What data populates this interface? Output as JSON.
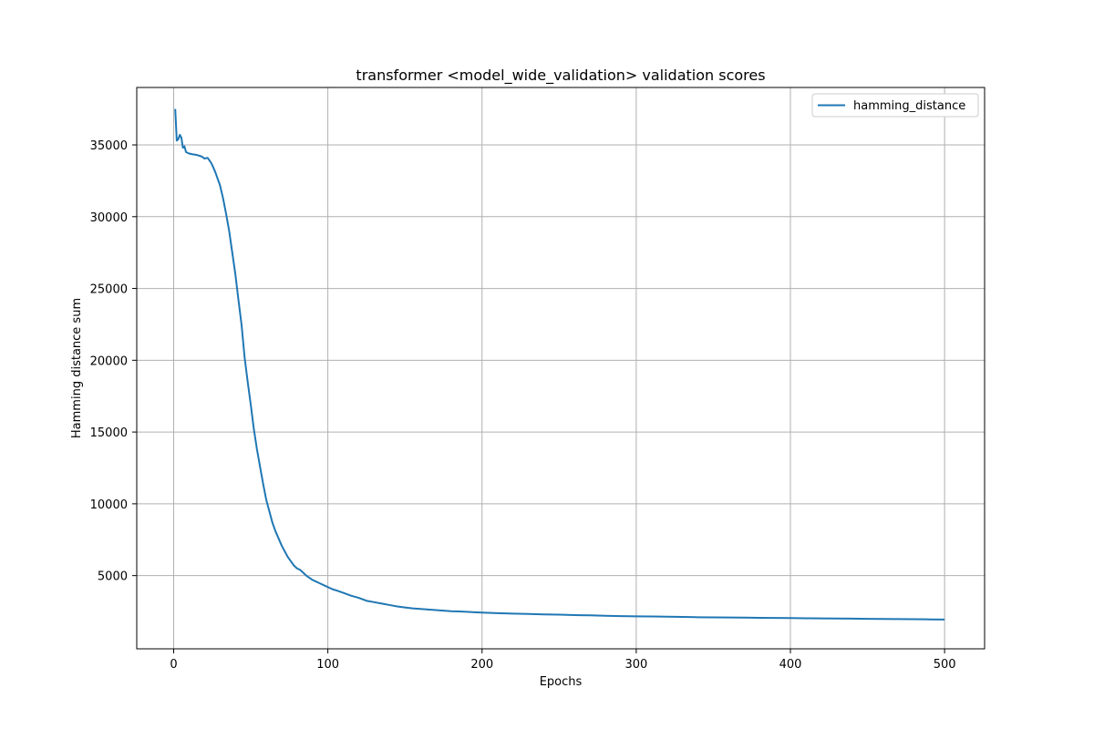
{
  "chart_data": {
    "type": "line",
    "title": "transformer <model_wide_validation> validation scores",
    "xlabel": "Epochs",
    "ylabel": "Hamming distance sum",
    "xlim": [
      -23.95,
      525.95
    ],
    "ylim": [
      -100,
      39000
    ],
    "xticks": [
      0,
      100,
      200,
      300,
      400,
      500
    ],
    "yticks": [
      5000,
      10000,
      15000,
      20000,
      25000,
      30000,
      35000
    ],
    "grid": true,
    "legend": {
      "position": "top-right",
      "entries": [
        "hamming_distance"
      ]
    },
    "series": [
      {
        "name": "hamming_distance",
        "color": "#1f77b4",
        "x": [
          1,
          2,
          3,
          4,
          5,
          6,
          7,
          8,
          10,
          12,
          15,
          18,
          20,
          22,
          24,
          25,
          27,
          28,
          30,
          32,
          34,
          36,
          38,
          40,
          42,
          44,
          46,
          48,
          50,
          52,
          54,
          56,
          58,
          60,
          62,
          64,
          66,
          68,
          70,
          72,
          74,
          76,
          78,
          80,
          82,
          84,
          86,
          88,
          90,
          92,
          94,
          96,
          98,
          100,
          103,
          106,
          110,
          115,
          120,
          125,
          130,
          135,
          140,
          145,
          150,
          155,
          160,
          165,
          170,
          175,
          180,
          185,
          190,
          195,
          200,
          210,
          220,
          230,
          240,
          250,
          260,
          270,
          280,
          290,
          300,
          310,
          320,
          330,
          340,
          350,
          360,
          370,
          380,
          390,
          400,
          410,
          420,
          430,
          440,
          450,
          460,
          470,
          480,
          490,
          500
        ],
        "y": [
          37500,
          35300,
          35400,
          35700,
          35500,
          34800,
          34900,
          34500,
          34400,
          34350,
          34300,
          34200,
          34050,
          34100,
          33800,
          33600,
          33100,
          32800,
          32200,
          31300,
          30200,
          29000,
          27500,
          26000,
          24200,
          22500,
          20200,
          18500,
          16900,
          15200,
          13800,
          12600,
          11400,
          10300,
          9500,
          8700,
          8100,
          7600,
          7100,
          6700,
          6300,
          6000,
          5700,
          5500,
          5400,
          5200,
          5000,
          4850,
          4700,
          4600,
          4500,
          4400,
          4300,
          4200,
          4050,
          3950,
          3800,
          3600,
          3450,
          3250,
          3150,
          3050,
          2950,
          2850,
          2780,
          2720,
          2680,
          2640,
          2600,
          2560,
          2520,
          2500,
          2480,
          2450,
          2420,
          2380,
          2350,
          2330,
          2300,
          2280,
          2250,
          2230,
          2200,
          2180,
          2160,
          2150,
          2140,
          2120,
          2100,
          2090,
          2080,
          2070,
          2060,
          2050,
          2040,
          2030,
          2020,
          2010,
          2000,
          1990,
          1980,
          1970,
          1960,
          1950,
          1940
        ]
      }
    ]
  }
}
